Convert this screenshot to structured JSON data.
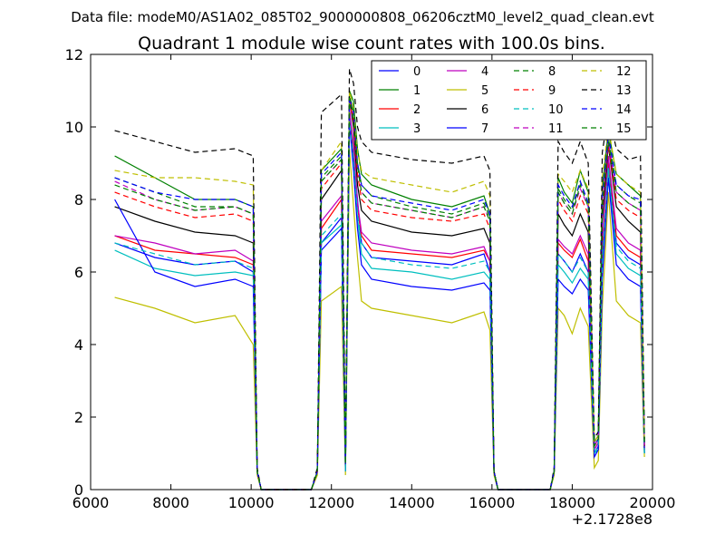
{
  "chart_data": {
    "type": "line",
    "suptitle": "Data file: modeM0/AS1A02_085T02_9000000808_06206cztM0_level2_quad_clean.evt",
    "title": "Quadrant 1 module wise count rates with 100.0s bins.",
    "xlabel": "",
    "ylabel": "",
    "x_offset_label": "+2.1728e8",
    "xlim": [
      6000,
      20000
    ],
    "ylim": [
      0,
      12
    ],
    "x_ticks": [
      "6000",
      "8000",
      "10000",
      "12000",
      "14000",
      "16000",
      "18000",
      "20000"
    ],
    "y_ticks": [
      "0",
      "2",
      "4",
      "6",
      "8",
      "10",
      "12"
    ],
    "legend_position": "upper-right",
    "x_sample": [
      6600,
      7600,
      8600,
      9600,
      10050,
      10150,
      10250,
      11500,
      11650,
      11750,
      12250,
      12350,
      12450,
      12550,
      12650,
      12750,
      13000,
      14000,
      15000,
      15800,
      15950,
      16050,
      16150,
      17450,
      17550,
      17650,
      17800,
      18000,
      18200,
      18400,
      18550,
      18650,
      18750,
      18900,
      19100,
      19400,
      19700,
      19800
    ],
    "series": [
      {
        "name": "0",
        "color": "#0000ff",
        "style": "solid",
        "values": [
          6.8,
          6.4,
          6.2,
          6.3,
          6.0,
          0.5,
          0,
          0,
          0.5,
          6.8,
          7.5,
          0.5,
          10.5,
          9.2,
          8.0,
          6.8,
          6.4,
          6.3,
          6.2,
          6.5,
          6.0,
          0.5,
          0,
          0,
          0.5,
          6.5,
          6.3,
          6.0,
          6.5,
          6.0,
          1.0,
          1.2,
          6.4,
          9.0,
          6.8,
          6.4,
          6.2,
          1.0
        ]
      },
      {
        "name": "1",
        "color": "#008000",
        "style": "solid",
        "values": [
          9.2,
          8.6,
          8.0,
          8.0,
          7.8,
          0.5,
          0,
          0,
          0.5,
          8.8,
          9.4,
          0.8,
          11.0,
          10.7,
          9.4,
          8.7,
          8.4,
          8.0,
          7.8,
          8.1,
          7.6,
          0.5,
          0,
          0,
          0.5,
          8.6,
          8.2,
          7.9,
          8.8,
          8.2,
          1.3,
          1.5,
          8.3,
          9.9,
          8.7,
          8.4,
          8.1,
          1.3
        ]
      },
      {
        "name": "2",
        "color": "#ff0000",
        "style": "solid",
        "values": [
          7.0,
          6.6,
          6.5,
          6.4,
          6.2,
          0.5,
          0,
          0,
          0.5,
          7.2,
          8.0,
          0.6,
          10.4,
          9.4,
          7.8,
          7.0,
          6.6,
          6.5,
          6.4,
          6.6,
          6.3,
          0.5,
          0,
          0,
          0.5,
          6.8,
          6.6,
          6.4,
          6.9,
          6.3,
          1.1,
          1.3,
          6.6,
          9.1,
          7.0,
          6.6,
          6.4,
          1.1
        ]
      },
      {
        "name": "3",
        "color": "#00bfbf",
        "style": "solid",
        "values": [
          6.6,
          6.1,
          5.9,
          6.0,
          5.9,
          0.5,
          0,
          0,
          0.5,
          6.8,
          7.3,
          0.5,
          10.2,
          9.0,
          7.5,
          6.5,
          6.1,
          6.0,
          5.8,
          6.0,
          5.8,
          0.5,
          0,
          0,
          0.5,
          6.2,
          6.0,
          5.7,
          6.1,
          5.8,
          1.0,
          1.1,
          6.1,
          8.8,
          6.5,
          6.1,
          5.9,
          1.0
        ]
      },
      {
        "name": "4",
        "color": "#bf00bf",
        "style": "solid",
        "values": [
          7.0,
          6.8,
          6.5,
          6.6,
          6.3,
          0.5,
          0,
          0,
          0.5,
          7.4,
          8.1,
          0.6,
          10.5,
          9.5,
          7.9,
          7.1,
          6.8,
          6.6,
          6.5,
          6.7,
          6.3,
          0.5,
          0,
          0,
          0.5,
          6.9,
          6.7,
          6.5,
          7.0,
          6.5,
          1.1,
          1.3,
          6.8,
          9.2,
          7.2,
          6.8,
          6.6,
          1.1
        ]
      },
      {
        "name": "5",
        "color": "#bfbf00",
        "style": "solid",
        "values": [
          5.3,
          5.0,
          4.6,
          4.8,
          4.0,
          0.4,
          0,
          0,
          0.4,
          5.2,
          5.6,
          0.4,
          9.4,
          7.8,
          6.4,
          5.2,
          5.0,
          4.8,
          4.6,
          4.9,
          4.4,
          0.4,
          0,
          0,
          0.4,
          5.0,
          4.8,
          4.3,
          5.0,
          4.5,
          0.6,
          0.8,
          5.0,
          8.2,
          5.2,
          4.8,
          4.6,
          0.9
        ]
      },
      {
        "name": "6",
        "color": "#000000",
        "style": "solid",
        "values": [
          7.8,
          7.4,
          7.1,
          7.0,
          6.8,
          0.5,
          0,
          0,
          0.5,
          8.0,
          8.8,
          0.7,
          10.8,
          10.0,
          8.4,
          7.7,
          7.4,
          7.1,
          7.0,
          7.2,
          6.8,
          0.5,
          0,
          0,
          0.5,
          7.6,
          7.3,
          7.0,
          7.6,
          7.1,
          1.2,
          1.4,
          7.4,
          9.5,
          7.8,
          7.4,
          7.1,
          1.2
        ]
      },
      {
        "name": "7",
        "color": "#0000ff",
        "style": "solid",
        "values": [
          8.0,
          6.0,
          5.6,
          5.8,
          5.6,
          0.5,
          0,
          0,
          0.5,
          6.6,
          7.2,
          0.5,
          10.1,
          8.8,
          7.2,
          6.2,
          5.8,
          5.6,
          5.5,
          5.7,
          5.5,
          0.5,
          0,
          0,
          0.5,
          5.8,
          5.6,
          5.4,
          5.8,
          5.5,
          0.9,
          1.1,
          5.8,
          8.6,
          6.2,
          5.8,
          5.6,
          1.0
        ]
      },
      {
        "name": "8",
        "color": "#008000",
        "style": "dashed",
        "values": [
          8.6,
          8.2,
          7.8,
          7.8,
          7.6,
          0.5,
          0,
          0,
          0.5,
          8.6,
          9.2,
          0.7,
          10.9,
          10.4,
          9.0,
          8.4,
          8.1,
          7.8,
          7.6,
          7.9,
          7.5,
          0.5,
          0,
          0,
          0.5,
          8.3,
          8.0,
          7.7,
          8.5,
          7.9,
          1.2,
          1.4,
          8.1,
          9.7,
          8.4,
          8.1,
          7.9,
          1.2
        ]
      },
      {
        "name": "9",
        "color": "#ff0000",
        "style": "dashed",
        "values": [
          8.2,
          7.8,
          7.5,
          7.6,
          7.4,
          0.5,
          0,
          0,
          0.5,
          8.3,
          9.0,
          0.7,
          10.7,
          10.2,
          8.7,
          8.0,
          7.7,
          7.5,
          7.4,
          7.6,
          7.2,
          0.5,
          0,
          0,
          0.5,
          8.0,
          7.7,
          7.4,
          8.1,
          7.6,
          1.2,
          1.4,
          7.8,
          9.5,
          8.0,
          7.7,
          7.5,
          1.2
        ]
      },
      {
        "name": "10",
        "color": "#00bfbf",
        "style": "dashed",
        "values": [
          6.8,
          6.5,
          6.2,
          6.3,
          6.1,
          0.5,
          0,
          0,
          0.5,
          7.0,
          7.6,
          0.5,
          10.2,
          9.1,
          7.6,
          6.8,
          6.4,
          6.2,
          6.1,
          6.3,
          6.0,
          0.5,
          0,
          0,
          0.5,
          6.5,
          6.3,
          6.0,
          6.4,
          6.0,
          1.0,
          1.2,
          6.3,
          8.9,
          6.7,
          6.3,
          6.1,
          1.0
        ]
      },
      {
        "name": "11",
        "color": "#bf00bf",
        "style": "dashed",
        "values": [
          8.5,
          8.0,
          7.7,
          7.8,
          7.6,
          0.5,
          0,
          0,
          0.5,
          8.5,
          9.1,
          0.7,
          10.8,
          10.3,
          8.9,
          8.2,
          7.9,
          7.7,
          7.5,
          7.8,
          7.4,
          0.5,
          0,
          0,
          0.5,
          8.2,
          7.9,
          7.6,
          8.3,
          7.8,
          1.2,
          1.4,
          8.0,
          9.6,
          8.2,
          7.9,
          7.7,
          1.2
        ]
      },
      {
        "name": "12",
        "color": "#bfbf00",
        "style": "dashed",
        "values": [
          8.8,
          8.6,
          8.6,
          8.5,
          8.4,
          0.5,
          0,
          0,
          0.5,
          8.8,
          9.6,
          0.7,
          11.0,
          10.5,
          9.3,
          8.8,
          8.6,
          8.4,
          8.2,
          8.5,
          8.1,
          0.5,
          0,
          0,
          0.5,
          8.7,
          8.5,
          8.2,
          8.8,
          8.3,
          1.3,
          1.5,
          8.6,
          10.0,
          8.7,
          8.4,
          8.2,
          1.3
        ]
      },
      {
        "name": "13",
        "color": "#000000",
        "style": "dashed",
        "values": [
          9.9,
          9.6,
          9.3,
          9.4,
          9.2,
          0.6,
          0,
          0,
          0.6,
          10.4,
          10.9,
          0.9,
          11.6,
          11.2,
          10.0,
          9.6,
          9.3,
          9.1,
          9.0,
          9.2,
          8.8,
          0.5,
          0,
          0,
          0.6,
          9.6,
          9.3,
          9.0,
          9.6,
          9.0,
          1.4,
          1.6,
          9.3,
          10.4,
          9.4,
          9.1,
          9.2,
          1.4
        ]
      },
      {
        "name": "14",
        "color": "#0000ff",
        "style": "dashed",
        "values": [
          8.6,
          8.2,
          8.0,
          8.0,
          7.8,
          0.5,
          0,
          0,
          0.5,
          8.7,
          9.3,
          0.7,
          10.8,
          10.4,
          9.0,
          8.4,
          8.1,
          7.9,
          7.7,
          8.0,
          7.6,
          0.5,
          0,
          0,
          0.5,
          8.4,
          8.1,
          7.8,
          8.5,
          7.9,
          1.2,
          1.4,
          8.1,
          9.8,
          8.4,
          8.1,
          8.0,
          1.2
        ]
      },
      {
        "name": "15",
        "color": "#008000",
        "style": "dashed",
        "values": [
          8.4,
          8.0,
          7.7,
          7.8,
          7.6,
          0.5,
          0,
          0,
          0.5,
          8.5,
          9.1,
          0.7,
          10.8,
          10.3,
          8.9,
          8.2,
          7.9,
          7.7,
          7.5,
          7.8,
          7.4,
          0.5,
          0,
          0,
          0.5,
          8.2,
          7.9,
          7.6,
          8.4,
          7.8,
          1.2,
          1.4,
          7.9,
          9.6,
          8.2,
          7.9,
          7.7,
          1.2
        ]
      }
    ]
  }
}
